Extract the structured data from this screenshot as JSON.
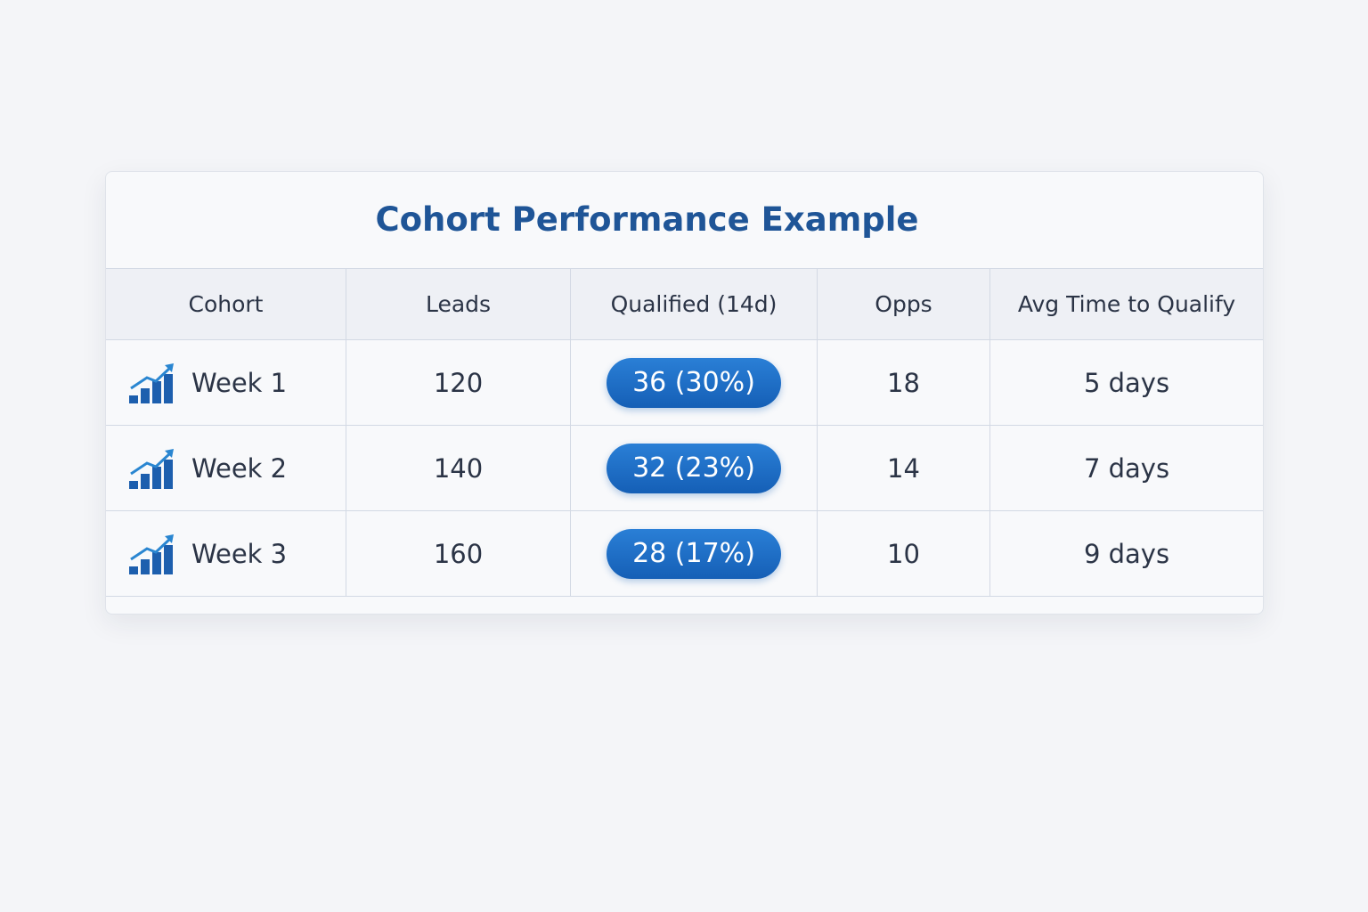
{
  "title": "Cohort Performance Example",
  "table": {
    "columns": [
      "Cohort",
      "Leads",
      "Qualified (14d)",
      "Opps",
      "Avg Time to Qualify"
    ],
    "rows": [
      [
        "Week 1",
        "120",
        "36 (30%)",
        "18",
        "5 days"
      ],
      [
        "Week 2",
        "140",
        "32 (23%)",
        "14",
        "7 days"
      ],
      [
        "Week 3",
        "160",
        "28 (17%)",
        "10",
        "9 days"
      ]
    ]
  }
}
